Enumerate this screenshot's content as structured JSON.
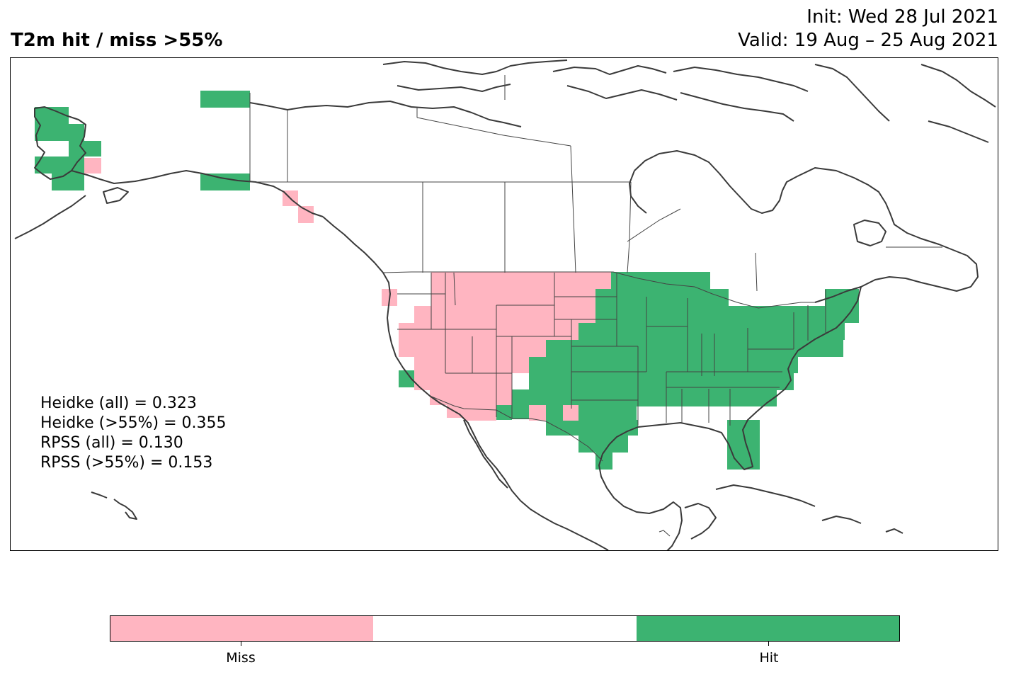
{
  "header": {
    "title": "T2m hit / miss  >55%",
    "init": "Init: Wed 28 Jul 2021",
    "valid": "Valid: 19 Aug – 25 Aug 2021"
  },
  "stats": {
    "heidke_all": "Heidke (all) = 0.323",
    "heidke_55": "Heidke (>55%) = 0.355",
    "rpss_all": "RPSS (all) = 0.130",
    "rpss_55": "RPSS (>55%) = 0.153"
  },
  "colorbar": {
    "segments": [
      {
        "name": "miss",
        "color": "#ffb5c1"
      },
      {
        "name": "none",
        "color": "#ffffff"
      },
      {
        "name": "hit",
        "color": "#3cb371"
      }
    ],
    "labels": [
      {
        "name": "miss",
        "text": "Miss"
      },
      {
        "name": "hit",
        "text": "Hit"
      }
    ]
  },
  "colors": {
    "miss": "#ffb5c1",
    "hit": "#3cb371",
    "coast": "#3a3a3a",
    "border": "#444444"
  }
}
